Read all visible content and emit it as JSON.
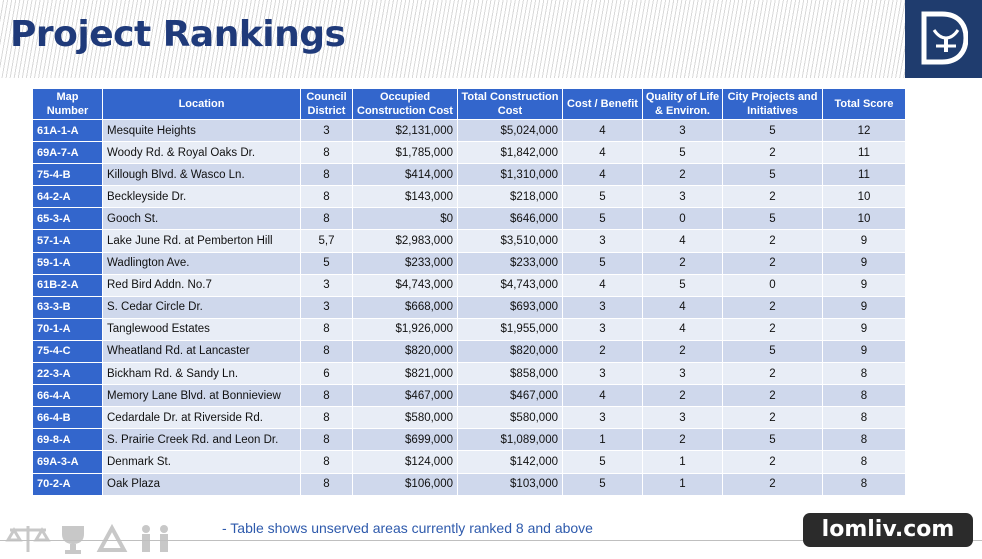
{
  "title": "Project Rankings",
  "headers": [
    "Map Number",
    "Location",
    "Council District",
    "Occupied Construction Cost",
    "Total Construction Cost",
    "Cost / Benefit",
    "Quality of Life & Environ.",
    "City Projects and Initiatives",
    "Total Score"
  ],
  "rows": [
    [
      "61A-1-A",
      "Mesquite Heights",
      "3",
      "$2,131,000",
      "$5,024,000",
      "4",
      "3",
      "5",
      "12"
    ],
    [
      "69A-7-A",
      "Woody Rd. & Royal Oaks Dr.",
      "8",
      "$1,785,000",
      "$1,842,000",
      "4",
      "5",
      "2",
      "11"
    ],
    [
      "75-4-B",
      "Killough Blvd. & Wasco Ln.",
      "8",
      "$414,000",
      "$1,310,000",
      "4",
      "2",
      "5",
      "11"
    ],
    [
      "64-2-A",
      "Beckleyside Dr.",
      "8",
      "$143,000",
      "$218,000",
      "5",
      "3",
      "2",
      "10"
    ],
    [
      "65-3-A",
      "Gooch St.",
      "8",
      "$0",
      "$646,000",
      "5",
      "0",
      "5",
      "10"
    ],
    [
      "57-1-A",
      "Lake June Rd. at Pemberton Hill",
      "5,7",
      "$2,983,000",
      "$3,510,000",
      "3",
      "4",
      "2",
      "9"
    ],
    [
      "59-1-A",
      "Wadlington Ave.",
      "5",
      "$233,000",
      "$233,000",
      "5",
      "2",
      "2",
      "9"
    ],
    [
      "61B-2-A",
      "Red Bird Addn. No.7",
      "3",
      "$4,743,000",
      "$4,743,000",
      "4",
      "5",
      "0",
      "9"
    ],
    [
      "63-3-B",
      "S. Cedar Circle Dr.",
      "3",
      "$668,000",
      "$693,000",
      "3",
      "4",
      "2",
      "9"
    ],
    [
      "70-1-A",
      "Tanglewood Estates",
      "8",
      "$1,926,000",
      "$1,955,000",
      "3",
      "4",
      "2",
      "9"
    ],
    [
      "75-4-C",
      "Wheatland Rd. at Lancaster",
      "8",
      "$820,000",
      "$820,000",
      "2",
      "2",
      "5",
      "9"
    ],
    [
      "22-3-A",
      "Bickham Rd. & Sandy Ln.",
      "6",
      "$821,000",
      "$858,000",
      "3",
      "3",
      "2",
      "8"
    ],
    [
      "66-4-A",
      "Memory Lane Blvd. at Bonnieview",
      "8",
      "$467,000",
      "$467,000",
      "4",
      "2",
      "2",
      "8"
    ],
    [
      "66-4-B",
      "Cedardale Dr. at Riverside Rd.",
      "8",
      "$580,000",
      "$580,000",
      "3",
      "3",
      "2",
      "8"
    ],
    [
      "69-8-A",
      "S. Prairie Creek Rd. and Leon Dr.",
      "8",
      "$699,000",
      "$1,089,000",
      "1",
      "2",
      "5",
      "8"
    ],
    [
      "69A-3-A",
      "Denmark St.",
      "8",
      "$124,000",
      "$142,000",
      "5",
      "1",
      "2",
      "8"
    ],
    [
      "70-2-A",
      "Oak Plaza",
      "8",
      "$106,000",
      "$103,000",
      "5",
      "1",
      "2",
      "8"
    ]
  ],
  "footnote": "- Table shows unserved areas currently ranked 8 and above",
  "watermark": "lomliv.com",
  "colors": {
    "title": "#1f3a7a",
    "header": "#3366cc",
    "row_odd": "#cfd8ec",
    "row_even": "#e8edf6",
    "logo_bg": "#1f3c6e"
  },
  "icons": [
    "city-logo-icon",
    "scales-icon",
    "trophy-icon",
    "recycle-icon",
    "people-icon"
  ]
}
